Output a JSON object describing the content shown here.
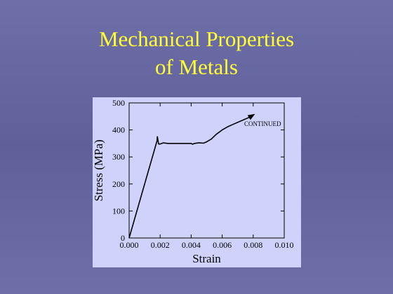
{
  "slide": {
    "title_line1": "Mechanical Properties",
    "title_line2": "of Metals",
    "background_color": "#6465a0",
    "title_color": "#ffff33",
    "panel_color": "#cfd3fb"
  },
  "chart_data": {
    "type": "line",
    "xlabel": "Strain",
    "ylabel": "Stress (MPa)",
    "xlim": [
      0,
      0.01
    ],
    "ylim": [
      0,
      500
    ],
    "x_ticks": [
      "0.000",
      "0.002",
      "0.004",
      "0.006",
      "0.008",
      "0.010"
    ],
    "y_ticks": [
      "0",
      "100",
      "200",
      "300",
      "400",
      "500"
    ],
    "grid": false,
    "annotation": "CONTINUED",
    "series": [
      {
        "x": [
          0.0,
          0.0018,
          0.00182,
          0.0019,
          0.002,
          0.0022,
          0.0025,
          0.0028,
          0.003,
          0.0035,
          0.004,
          0.0041,
          0.0042,
          0.0045,
          0.0048,
          0.005,
          0.0053,
          0.0056,
          0.006,
          0.0064,
          0.0068,
          0.0072,
          0.0076,
          0.0078,
          0.008
        ],
        "y": [
          0,
          360,
          375,
          348,
          348,
          352,
          350,
          350,
          350,
          350,
          350,
          347,
          350,
          352,
          351,
          356,
          366,
          383,
          400,
          413,
          423,
          433,
          443,
          448,
          455
        ]
      }
    ]
  }
}
